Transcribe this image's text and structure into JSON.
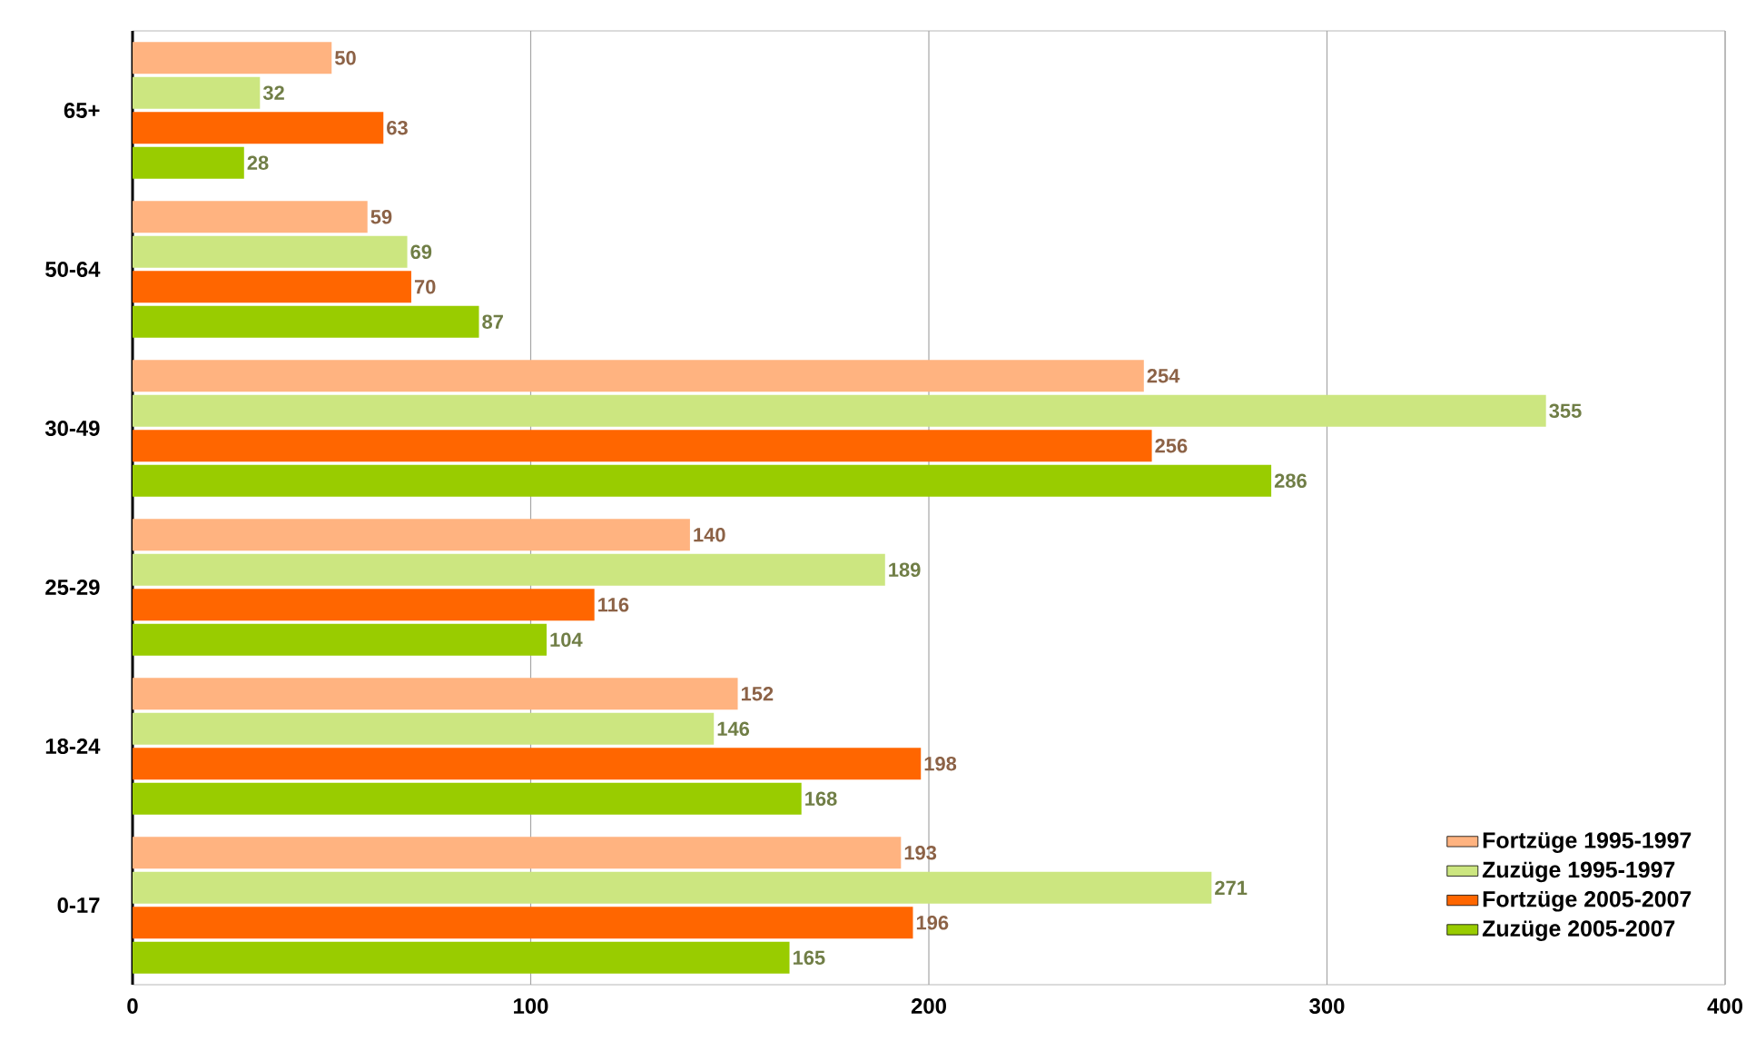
{
  "chart_data": {
    "type": "bar",
    "orientation": "horizontal",
    "categories": [
      "65+",
      "50-64",
      "30-49",
      "25-29",
      "18-24",
      "0-17"
    ],
    "series": [
      {
        "name": "Fortzüge 1995-1997",
        "color": "#ffb380",
        "values": [
          50,
          59,
          254,
          140,
          152,
          193
        ]
      },
      {
        "name": "Zuzüge 1995-1997",
        "color": "#cce680",
        "values": [
          32,
          69,
          355,
          189,
          146,
          271
        ]
      },
      {
        "name": "Fortzüge 2005-2007",
        "color": "#ff6600",
        "values": [
          63,
          70,
          256,
          116,
          198,
          196
        ]
      },
      {
        "name": "Zuzüge 2005-2007",
        "color": "#99cc00",
        "values": [
          28,
          87,
          286,
          104,
          168,
          165
        ]
      }
    ],
    "xlim": [
      0,
      400
    ],
    "xticks": [
      0,
      100,
      200,
      300,
      400
    ],
    "grid": "x",
    "legend": "bottom right",
    "data_labels": true
  }
}
